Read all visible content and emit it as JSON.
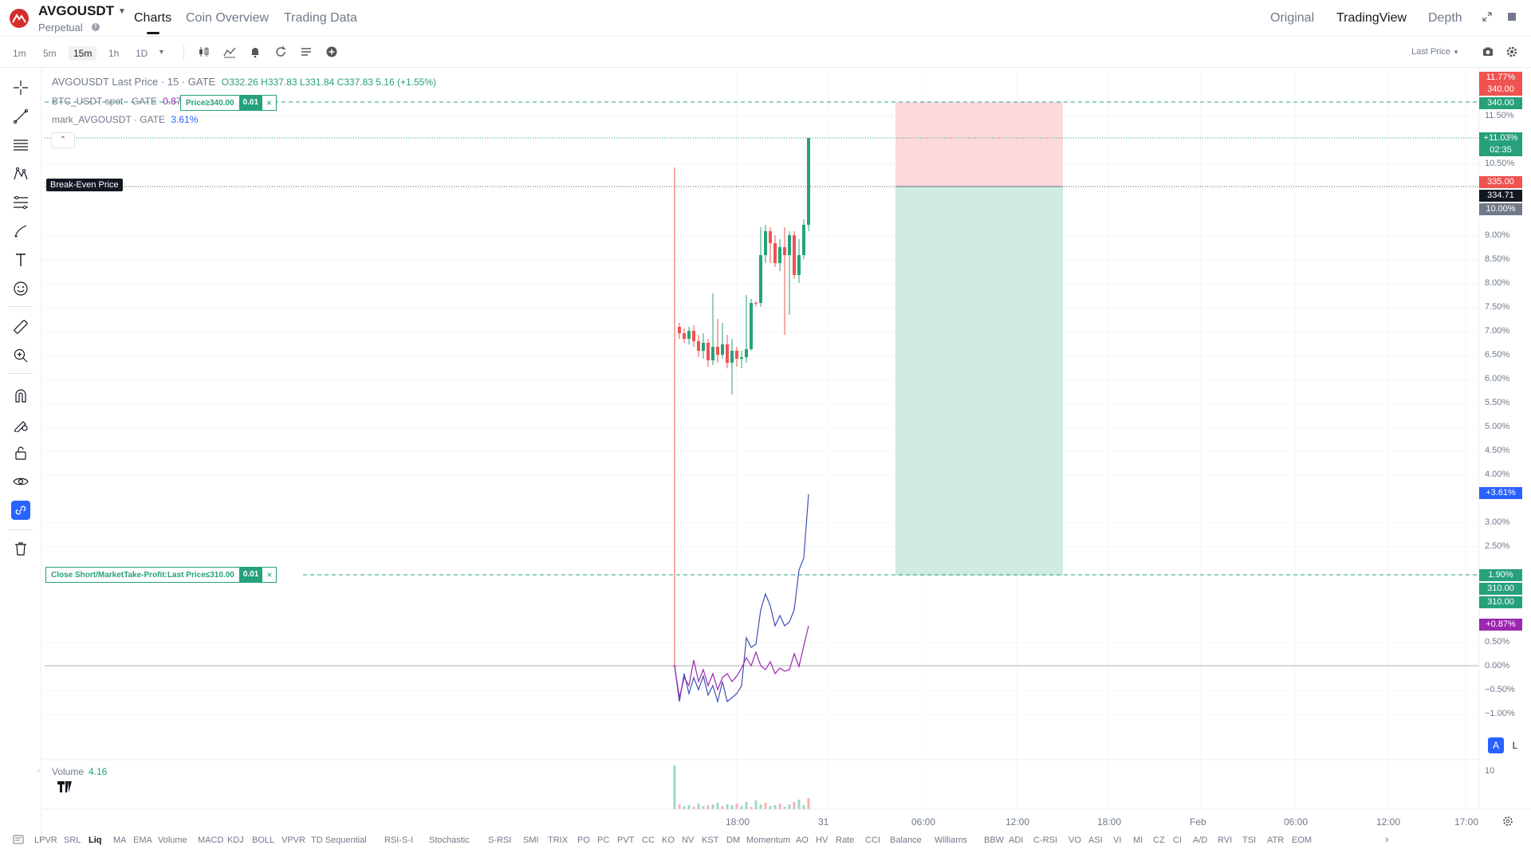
{
  "header": {
    "symbol": "AVGOUSDT",
    "contract_type": "Perpetual",
    "tabs": [
      "Charts",
      "Coin Overview",
      "Trading Data"
    ],
    "active_tab": "Charts",
    "views": [
      "Original",
      "TradingView",
      "Depth"
    ],
    "active_view": "TradingView"
  },
  "toolbar": {
    "timeframes": [
      "1m",
      "5m",
      "15m",
      "1h",
      "1D"
    ],
    "active_timeframe": "15m",
    "price_type": "Last Price"
  },
  "legend": {
    "main": {
      "name": "AVGOUSDT Last Price · 15 · GATE",
      "ohlc": "O332.26 H337.83 L331.84 C337.83 5.16 (+1.55%)"
    },
    "compare1": {
      "name": "BTC_USDT-spot · GATE",
      "value": "0.87%"
    },
    "compare2": {
      "name": "mark_AVGOUSDT · GATE",
      "value": "3.61%"
    }
  },
  "breakeven_label": "Break-Even Price",
  "orders": {
    "stop_loss": {
      "text": "Price≥340.00",
      "qty": "0.01",
      "close": "×"
    },
    "take_profit": {
      "text": "Close Short/MarketTake-Profit:Last Price≤310.00",
      "qty": "0.01",
      "close": "×"
    }
  },
  "price_axis": {
    "labels": [
      "11.50%",
      "10.50%",
      "9.00%",
      "8.50%",
      "8.00%",
      "7.50%",
      "7.00%",
      "6.50%",
      "6.00%",
      "5.50%",
      "5.00%",
      "4.50%",
      "4.00%",
      "3.00%",
      "2.50%",
      "0.50%",
      "0.00%",
      "−0.50%",
      "−1.00%"
    ],
    "tags": {
      "top_pct": "11.77%",
      "sl_price_red": "340.00",
      "sl_price_green": "340.00",
      "last_pct": "+11.03%",
      "countdown": "02:35",
      "entry_price": "335.00",
      "breakeven": "334.71",
      "entry_pct": "10.00%",
      "mark_pct": "+3.61%",
      "tp_pct": "1.90%",
      "tp_price1": "310.00",
      "tp_price2": "310.00",
      "btc_pct": "+0.87%"
    },
    "auto": "A",
    "log": "L"
  },
  "volume": {
    "label": "Volume",
    "value": "4.16",
    "axis": "10"
  },
  "time_axis": [
    "18:00",
    "31",
    "06:00",
    "12:00",
    "18:00",
    "Feb",
    "06:00",
    "12:00",
    "17:00"
  ],
  "indicators": [
    "LPVR",
    "SRL",
    "Liq",
    "MA",
    "EMA",
    "Volume",
    "MACD",
    "KDJ",
    "BOLL",
    "VPVR",
    "TD Sequential",
    "RSI-S-I",
    "Stochastic",
    "S-RSI",
    "SMI",
    "TRIX",
    "PO",
    "PC",
    "PVT",
    "CC",
    "KO",
    "NV",
    "KST",
    "DM",
    "Momentum",
    "AO",
    "HV",
    "Rate",
    "CCI",
    "Balance",
    "Williams",
    "BBW",
    "ADI",
    "C-RSI",
    "VO",
    "ASI",
    "VI",
    "MI",
    "CZ",
    "CI",
    "A/D",
    "RVI",
    "TSI",
    "ATR",
    "EOM"
  ],
  "active_indicator": "Liq",
  "colors": {
    "up": "#26a17b",
    "down": "#ef5350",
    "mark_line": "#3f51b5",
    "btc_line": "#9c27b0",
    "accent": "#2962ff"
  },
  "chart_data": {
    "type": "candlestick",
    "timeframe": "15m",
    "ohlc_last": {
      "open": 332.26,
      "high": 337.83,
      "low": 331.84,
      "close": 337.83
    },
    "position": {
      "entry": 335.0,
      "stop_loss": 340.0,
      "take_profit": 310.0,
      "break_even": 334.71
    }
  }
}
